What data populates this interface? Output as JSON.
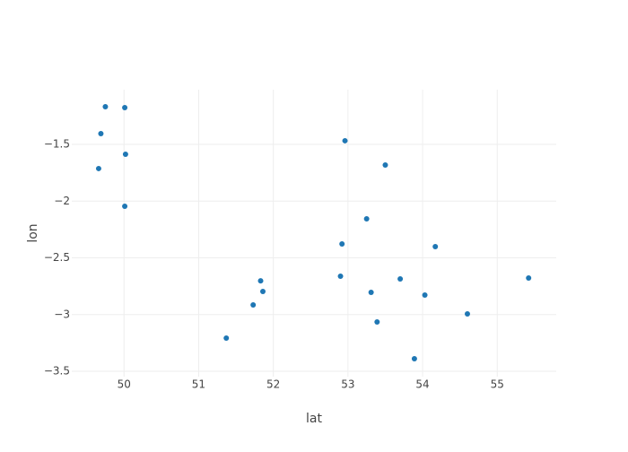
{
  "chart_data": {
    "type": "scatter",
    "x_label": "lat",
    "y_label": "lon",
    "series": [
      {
        "color": "#1f77b4",
        "x": [
          49.75,
          50.01,
          49.69,
          50.02,
          49.66,
          50.01,
          52.96,
          53.5,
          53.25,
          52.92,
          54.17,
          52.9,
          53.7,
          55.42,
          51.83,
          51.86,
          53.31,
          54.03,
          51.73,
          54.6,
          53.39,
          51.37,
          53.89
        ],
        "values": [
          -1.168,
          -1.176,
          -1.405,
          -1.587,
          -1.713,
          -2.045,
          -1.468,
          -1.682,
          -2.156,
          -2.377,
          -2.401,
          -2.662,
          -2.686,
          -2.678,
          -2.702,
          -2.796,
          -2.804,
          -2.828,
          -2.915,
          -2.994,
          -3.065,
          -3.207,
          -3.389
        ]
      }
    ],
    "xlim": [
      49.3,
      55.79
    ],
    "ylim": [
      -3.547,
      -1.018
    ],
    "xticks": [
      50,
      51,
      52,
      53,
      54,
      55
    ],
    "yticks": [
      {
        "value": -1.5,
        "label": "−1.5"
      },
      {
        "value": -2,
        "label": "−2"
      },
      {
        "value": -2.5,
        "label": "−2.5"
      },
      {
        "value": -3,
        "label": "−3"
      },
      {
        "value": -3.5,
        "label": "−3.5"
      }
    ],
    "grid": true
  }
}
